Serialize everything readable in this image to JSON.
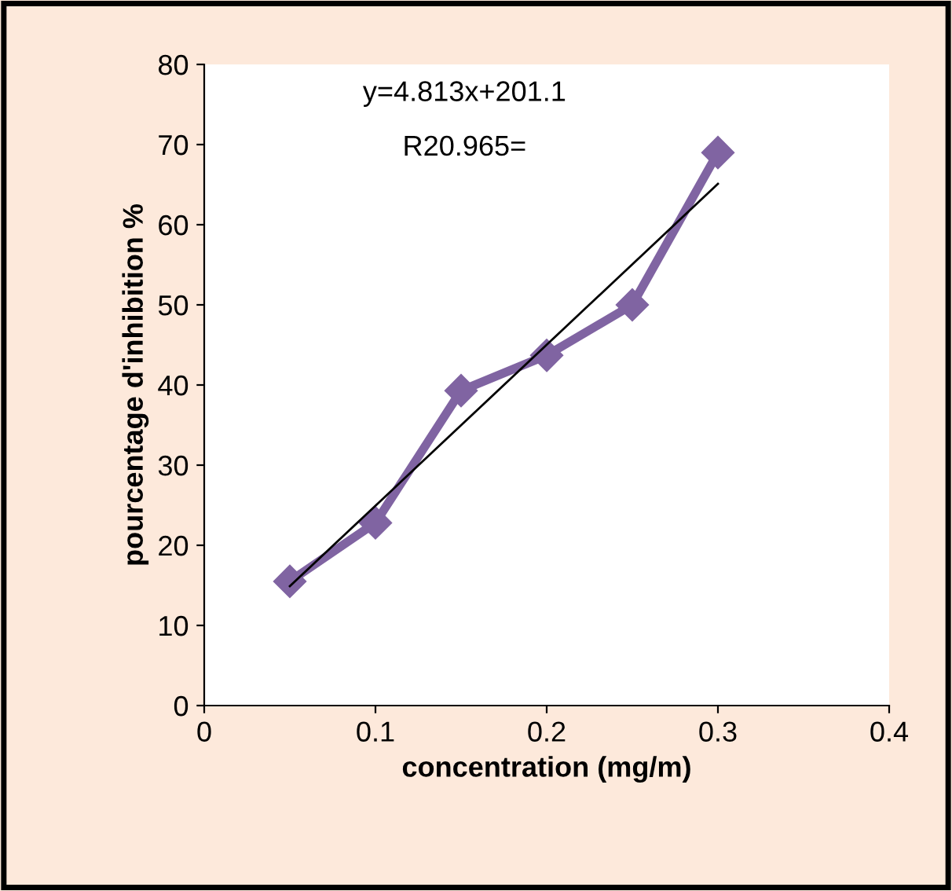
{
  "chart_data": {
    "type": "line",
    "xlabel": "concentration (mg/m)",
    "ylabel": "pourcentage d'inhibition %",
    "x": [
      0.05,
      0.1,
      0.15,
      0.2,
      0.25,
      0.3
    ],
    "series": [
      {
        "color": "#8064a2",
        "values": [
          15.5,
          22.8,
          39.3,
          43.7,
          50,
          69
        ],
        "marker": "diamond"
      },
      {
        "type": "line",
        "color": "#000000",
        "x": [
          0.05,
          0.3
        ],
        "values": [
          14.9,
          65.1
        ],
        "marker": "none"
      }
    ],
    "xlim": [
      0,
      0.4
    ],
    "xticks": [
      0,
      0.1,
      0.2,
      0.3,
      0.4
    ],
    "ylim": [
      0,
      80
    ],
    "yticks": [
      0,
      10,
      20,
      30,
      40,
      50,
      60,
      70,
      80
    ],
    "grid": false,
    "legend": false,
    "annotations": [
      "y=4.813x+201.1",
      "R20.965="
    ]
  }
}
